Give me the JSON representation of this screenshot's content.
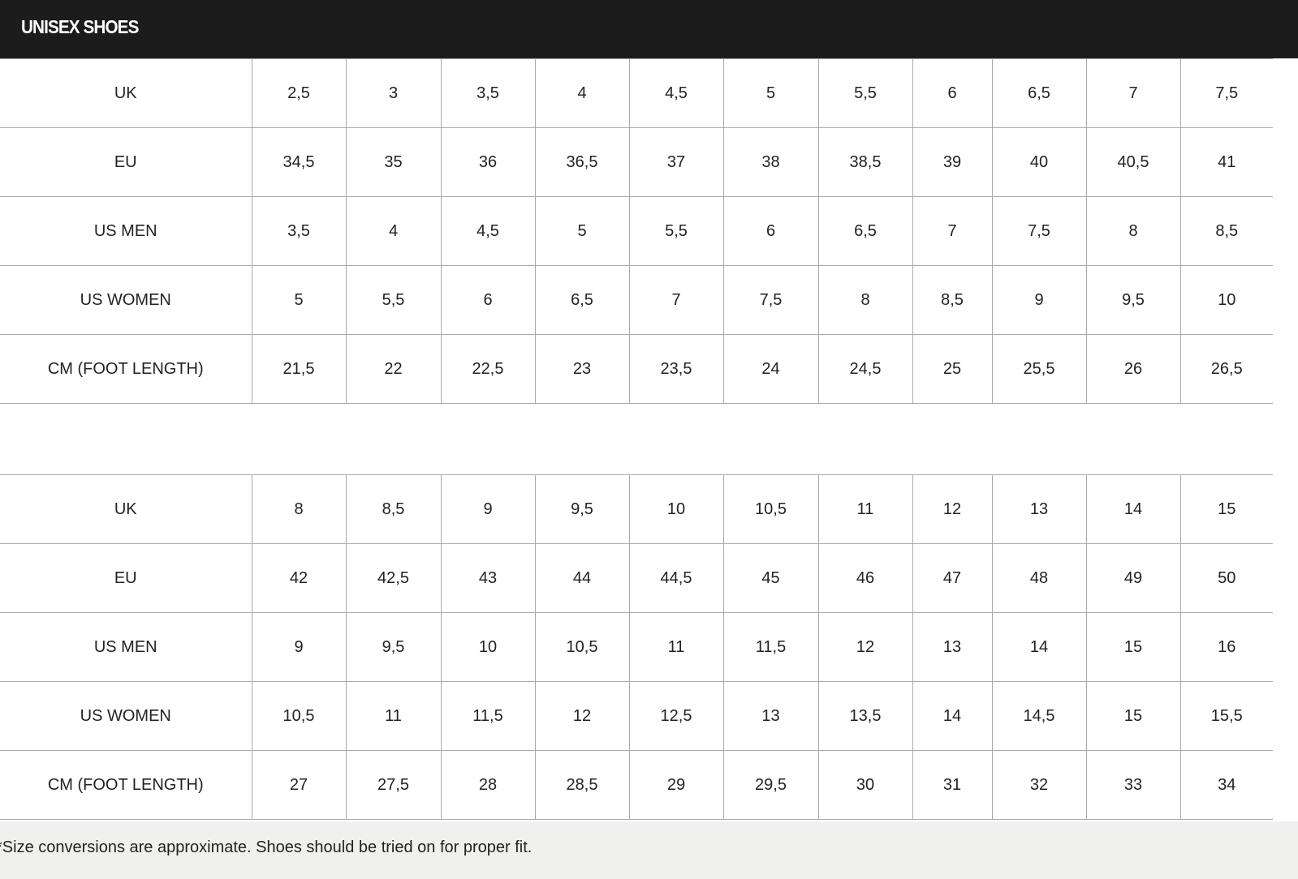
{
  "title": "UNISEX SHOES",
  "tables": [
    {
      "rows": [
        {
          "label": "UK",
          "values": [
            "2,5",
            "3",
            "3,5",
            "4",
            "4,5",
            "5",
            "5,5",
            "6",
            "6,5",
            "7",
            "7,5"
          ]
        },
        {
          "label": "EU",
          "values": [
            "34,5",
            "35",
            "36",
            "36,5",
            "37",
            "38",
            "38,5",
            "39",
            "40",
            "40,5",
            "41"
          ]
        },
        {
          "label": "US MEN",
          "values": [
            "3,5",
            "4",
            "4,5",
            "5",
            "5,5",
            "6",
            "6,5",
            "7",
            "7,5",
            "8",
            "8,5"
          ]
        },
        {
          "label": "US WOMEN",
          "values": [
            "5",
            "5,5",
            "6",
            "6,5",
            "7",
            "7,5",
            "8",
            "8,5",
            "9",
            "9,5",
            "10"
          ]
        },
        {
          "label": "CM (FOOT LENGTH)",
          "values": [
            "21,5",
            "22",
            "22,5",
            "23",
            "23,5",
            "24",
            "24,5",
            "25",
            "25,5",
            "26",
            "26,5"
          ]
        }
      ]
    },
    {
      "rows": [
        {
          "label": "UK",
          "values": [
            "8",
            "8,5",
            "9",
            "9,5",
            "10",
            "10,5",
            "11",
            "12",
            "13",
            "14",
            "15"
          ]
        },
        {
          "label": "EU",
          "values": [
            "42",
            "42,5",
            "43",
            "44",
            "44,5",
            "45",
            "46",
            "47",
            "48",
            "49",
            "50"
          ]
        },
        {
          "label": "US MEN",
          "values": [
            "9",
            "9,5",
            "10",
            "10,5",
            "11",
            "11,5",
            "12",
            "13",
            "14",
            "15",
            "16"
          ]
        },
        {
          "label": "US WOMEN",
          "values": [
            "10,5",
            "11",
            "11,5",
            "12",
            "12,5",
            "13",
            "13,5",
            "14",
            "14,5",
            "15",
            "15,5"
          ]
        },
        {
          "label": "CM (FOOT LENGTH)",
          "values": [
            "27",
            "27,5",
            "28",
            "28,5",
            "29",
            "29,5",
            "30",
            "31",
            "32",
            "33",
            "34"
          ]
        }
      ]
    }
  ],
  "footnote": "*Size conversions are approximate. Shoes should be tried on for proper fit."
}
